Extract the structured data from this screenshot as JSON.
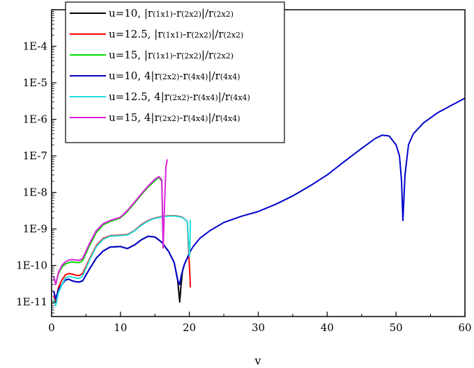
{
  "chart_data": {
    "type": "line",
    "title": "",
    "xlabel": "v",
    "ylabel": "",
    "xlim": [
      0,
      60
    ],
    "ylim": [
      4e-12,
      0.001
    ],
    "y_scale": "log",
    "x_ticks": [
      0,
      10,
      20,
      30,
      40,
      50,
      60
    ],
    "x_tick_labels": [
      "0",
      "10",
      "20",
      "30",
      "40",
      "50",
      "60"
    ],
    "y_ticks": [
      1e-11,
      1e-10,
      1e-09,
      1e-08,
      1e-07,
      1e-06,
      1e-05,
      0.0001
    ],
    "y_tick_labels": [
      "1E-11",
      "1E-10",
      "1E-9",
      "1E-8",
      "1E-7",
      "1E-6",
      "1E-5",
      "1E-4"
    ],
    "grid": false,
    "legend_position": "top-left",
    "series": [
      {
        "name": "u=10, |r(1x1)-r(2x2)|/r(2x2)",
        "legend_parts": [
          "u=10, |r",
          "(1x1)",
          "-r",
          "(2x2)",
          "|/r",
          "(2x2)"
        ],
        "color": "#000000",
        "x": [
          0.3,
          0.6,
          1.0,
          1.5,
          2.0,
          2.5,
          3.0,
          3.5,
          4.0,
          4.5,
          5.5,
          6.5,
          7.5,
          8.5,
          10,
          11,
          12,
          13,
          14,
          15,
          16,
          17,
          17.8,
          18.3,
          18.6,
          18.8,
          19.0,
          19.3,
          19.7,
          20.1
        ],
        "y": [
          2e-11,
          1.2e-11,
          2.2e-11,
          3e-11,
          4e-11,
          4.2e-11,
          3.8e-11,
          3.6e-11,
          3.5e-11,
          3.8e-11,
          8e-11,
          1.6e-10,
          2.5e-10,
          3.2e-10,
          3.3e-10,
          2.9e-10,
          3.6e-10,
          5e-10,
          6.3e-10,
          6e-10,
          4.3e-10,
          2.4e-10,
          1.2e-10,
          4e-11,
          1e-11,
          3e-11,
          7e-11,
          1.1e-10,
          1.6e-10,
          2.2e-10
        ]
      },
      {
        "name": "u=12.5, |r(1x1)-r(2x2)|/r(2x2)",
        "legend_parts": [
          "u=12.5, |r",
          "(1x1)",
          "-r",
          "(2x2)",
          "|/r",
          "(2x2)"
        ],
        "color": "#ff0000",
        "x": [
          0.3,
          0.6,
          1.0,
          1.5,
          2.0,
          2.5,
          3.0,
          3.5,
          4.0,
          4.5,
          5.5,
          6.5,
          7.5,
          8.5,
          10,
          11,
          12,
          13,
          14,
          15,
          16,
          17,
          18,
          19,
          19.7,
          20.0,
          20.1,
          20.15
        ],
        "y": [
          1.5e-11,
          1e-11,
          2.5e-11,
          4e-11,
          5.5e-11,
          6e-11,
          5.8e-11,
          5.4e-11,
          5.3e-11,
          6e-11,
          1.5e-10,
          3.5e-10,
          5.5e-10,
          6.5e-10,
          6.8e-10,
          7e-10,
          9e-10,
          1.3e-09,
          1.7e-09,
          2e-09,
          2.2e-09,
          2.3e-09,
          2.3e-09,
          2.1e-09,
          1.6e-09,
          1e-10,
          4e-11,
          2.5e-11
        ]
      },
      {
        "name": "u=15, |r(1x1)-r(2x2)|/r(2x2)",
        "legend_parts": [
          "u=15, |r",
          "(1x1)",
          "-r",
          "(2x2)",
          "|/r",
          "(2x2)"
        ],
        "color": "#00dd00",
        "x": [
          0.3,
          0.6,
          1.0,
          1.5,
          2.0,
          2.5,
          3.0,
          3.5,
          4.0,
          4.5,
          5.5,
          6.5,
          7.5,
          8.5,
          10,
          11,
          12,
          13,
          14,
          15,
          15.6,
          16.0,
          16.2
        ],
        "y": [
          5e-11,
          3e-11,
          6e-11,
          9e-11,
          1.1e-10,
          1.2e-10,
          1.25e-10,
          1.2e-10,
          1.2e-10,
          1.35e-10,
          3.5e-10,
          8e-10,
          1.3e-09,
          1.6e-09,
          2e-09,
          3e-09,
          5e-09,
          8.5e-09,
          1.4e-08,
          2.1e-08,
          2.6e-08,
          2e-08,
          3e-10
        ]
      },
      {
        "name": "u=10, 4|r(2x2)-r(4x4)|/r(4x4)",
        "legend_parts": [
          "u=10, 4|r",
          "(2x2)",
          "-r",
          "(4x4)",
          "|/r",
          "(4x4)"
        ],
        "color": "#0000cc",
        "x": [
          0.3,
          0.6,
          1.0,
          1.5,
          2.0,
          2.5,
          3.0,
          3.5,
          4.0,
          4.5,
          5.5,
          6.5,
          7.5,
          8.5,
          10,
          11,
          12,
          13,
          14,
          15,
          16,
          17,
          17.8,
          18.3,
          18.6,
          18.8,
          19.0,
          19.3,
          19.7,
          20.0,
          20.5,
          21.5,
          23,
          25,
          27.5,
          30,
          32.5,
          35,
          37.5,
          40,
          42.5,
          45,
          47,
          48,
          49,
          50,
          50.5,
          50.8,
          51.0,
          51.3,
          51.8,
          52.5,
          54,
          56,
          58,
          60
        ],
        "y": [
          2e-11,
          1.2e-11,
          2.2e-11,
          3e-11,
          4e-11,
          4.2e-11,
          3.8e-11,
          3.6e-11,
          3.5e-11,
          3.8e-11,
          8e-11,
          1.6e-10,
          2.5e-10,
          3.2e-10,
          3.3e-10,
          2.9e-10,
          3.6e-10,
          5e-10,
          6.3e-10,
          6e-10,
          4.3e-10,
          2.4e-10,
          1.2e-10,
          4e-11,
          3e-11,
          5e-11,
          7e-11,
          1.1e-10,
          1.6e-10,
          2.2e-10,
          3.2e-10,
          5.5e-10,
          9e-10,
          1.5e-09,
          2.2e-09,
          3e-09,
          4.7e-09,
          8e-09,
          1.5e-08,
          3e-08,
          7e-08,
          1.6e-07,
          3e-07,
          3.7e-07,
          3.5e-07,
          2e-07,
          1e-07,
          2e-08,
          1.7e-09,
          3e-08,
          2e-07,
          4e-07,
          8e-07,
          1.5e-06,
          2.4e-06,
          3.8e-06
        ]
      },
      {
        "name": "u=12.5, 4|r(2x2)-r(4x4)|/r(4x4)",
        "legend_parts": [
          "u=12.5, 4|r",
          "(2x2)",
          "-r",
          "(4x4)",
          "|/r",
          "(4x4)"
        ],
        "color": "#22dddd",
        "x": [
          0.3,
          0.6,
          1.0,
          1.5,
          2.0,
          2.5,
          3.0,
          3.5,
          4.0,
          4.5,
          5.5,
          6.5,
          7.5,
          8.5,
          10,
          11,
          12,
          13,
          14,
          15,
          16,
          17,
          18,
          19,
          19.7,
          20.0,
          20.1,
          20.15
        ],
        "y": [
          1.2e-11,
          8e-12,
          1.8e-11,
          3e-11,
          4.5e-11,
          5e-11,
          4.8e-11,
          4.5e-11,
          4.4e-11,
          5.2e-11,
          1.4e-10,
          3.3e-10,
          5.2e-10,
          6.3e-10,
          6.6e-10,
          6.8e-10,
          8.8e-10,
          1.25e-09,
          1.65e-09,
          1.95e-09,
          2.15e-09,
          2.25e-09,
          2.25e-09,
          2.05e-09,
          1.6e-09,
          1.8e-10,
          5e-10,
          1.8e-09
        ]
      },
      {
        "name": "u=15, 4|r(2x2)-r(4x4)|/r(4x4)",
        "legend_parts": [
          "u=15, 4|r",
          "(2x2)",
          "-r",
          "(4x4)",
          "|/r",
          "(4x4)"
        ],
        "color": "#dd22dd",
        "x": [
          0.3,
          0.6,
          1.0,
          1.5,
          2.0,
          2.5,
          3.0,
          3.5,
          4.0,
          4.5,
          5.5,
          6.5,
          7.5,
          8.5,
          10,
          11,
          12,
          13,
          14,
          15,
          15.6,
          16.0,
          16.2,
          16.4,
          16.6,
          16.8
        ],
        "y": [
          5e-11,
          3e-11,
          6.5e-11,
          1e-10,
          1.25e-10,
          1.4e-10,
          1.45e-10,
          1.4e-10,
          1.38e-10,
          1.55e-10,
          4e-10,
          9e-10,
          1.4e-09,
          1.7e-09,
          2.1e-09,
          3.2e-09,
          5.3e-09,
          9e-09,
          1.5e-08,
          2.3e-08,
          2.7e-08,
          2.2e-08,
          3e-10,
          5e-09,
          5e-08,
          8e-08
        ]
      }
    ]
  }
}
